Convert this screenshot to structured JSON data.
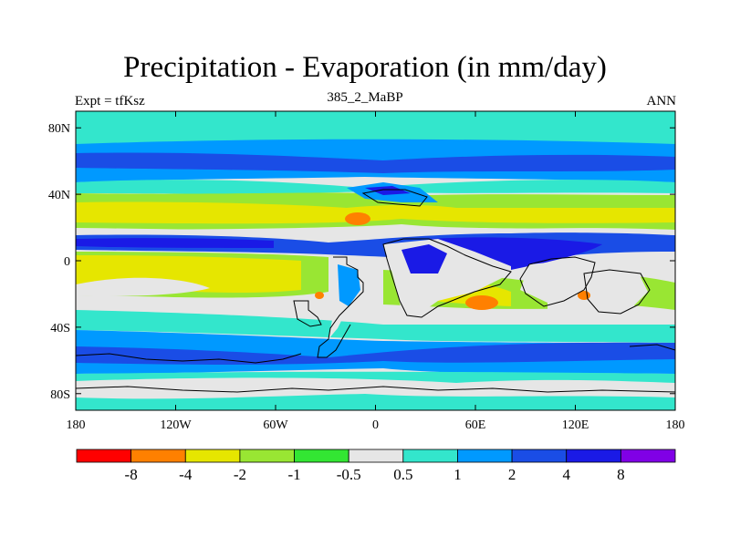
{
  "title": "Precipitation - Evaporation (in mm/day)",
  "left_subtitle": "Expt = tfKsz",
  "center_subtitle": "385_2_MaBP",
  "right_subtitle": "ANN",
  "map": {
    "lat_ticks": [
      "80N",
      "40N",
      "0",
      "40S",
      "80S"
    ],
    "lon_ticks": [
      "180",
      "120W",
      "60W",
      "0",
      "60E",
      "120E",
      "180"
    ],
    "lat_range": [
      -90,
      90
    ],
    "lon_range": [
      -180,
      180
    ],
    "background_color": "#e6e6e6"
  },
  "colorbar": {
    "colors": [
      "#ff0000",
      "#ff8000",
      "#e6e600",
      "#99e633",
      "#33e633",
      "#e6e6e6",
      "#33e6cc",
      "#0099ff",
      "#1a4de6",
      "#1a1ae6",
      "#8000e6"
    ],
    "labels": [
      "-8",
      "-4",
      "-2",
      "-1",
      "-0.5",
      "0.5",
      "1",
      "2",
      "4",
      "8"
    ]
  },
  "colors": {
    "land_outline": "#000000",
    "cyan": "#33e6cc",
    "light_blue": "#0099ff",
    "blue": "#1a4de6",
    "dark_blue": "#1a1ae6",
    "green": "#33e633",
    "yellow_green": "#99e633",
    "yellow": "#e6e600",
    "orange": "#ff8000",
    "grey": "#e6e6e6"
  }
}
